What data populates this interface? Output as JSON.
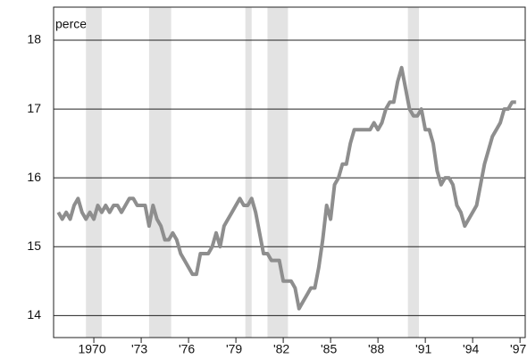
{
  "chart_data": {
    "type": "line",
    "y_unit_label": "percent",
    "xlim": [
      1967.45,
      1997.33
    ],
    "ylim": [
      13.68,
      18.48
    ],
    "yticks": [
      14,
      15,
      16,
      17,
      18
    ],
    "xticks": [
      {
        "value": 1970,
        "label": "1970"
      },
      {
        "value": 1973,
        "label": "'73"
      },
      {
        "value": 1976,
        "label": "'76"
      },
      {
        "value": 1979,
        "label": "'79"
      },
      {
        "value": 1982,
        "label": "'82"
      },
      {
        "value": 1985,
        "label": "'85"
      },
      {
        "value": 1988,
        "label": "'88"
      },
      {
        "value": 1991,
        "label": "'91"
      },
      {
        "value": 1994,
        "label": "'94"
      },
      {
        "value": 1997,
        "label": "'97"
      }
    ],
    "grid": true,
    "shaded_periods": [
      [
        1969.5,
        1970.5
      ],
      [
        1973.5,
        1974.9
      ],
      [
        1979.6,
        1980.0
      ],
      [
        1981.0,
        1982.3
      ],
      [
        1989.9,
        1990.6
      ]
    ],
    "shade_color": "#e3e3e3",
    "x": [
      1967.75,
      1968.0,
      1968.25,
      1968.5,
      1968.75,
      1969.0,
      1969.25,
      1969.5,
      1969.75,
      1970.0,
      1970.25,
      1970.5,
      1970.75,
      1971.0,
      1971.25,
      1971.5,
      1971.75,
      1972.0,
      1972.25,
      1972.5,
      1972.75,
      1973.0,
      1973.25,
      1973.5,
      1973.75,
      1974.0,
      1974.25,
      1974.5,
      1974.75,
      1975.0,
      1975.25,
      1975.5,
      1975.75,
      1976.0,
      1976.25,
      1976.5,
      1976.75,
      1977.0,
      1977.25,
      1977.5,
      1977.75,
      1978.0,
      1978.25,
      1978.5,
      1978.75,
      1979.0,
      1979.25,
      1979.5,
      1979.75,
      1980.0,
      1980.25,
      1980.5,
      1980.75,
      1981.0,
      1981.25,
      1981.5,
      1981.75,
      1982.0,
      1982.25,
      1982.5,
      1982.75,
      1983.0,
      1983.25,
      1983.5,
      1983.75,
      1984.0,
      1984.25,
      1984.5,
      1984.75,
      1985.0,
      1985.25,
      1985.5,
      1985.75,
      1986.0,
      1986.25,
      1986.5,
      1986.75,
      1987.0,
      1987.25,
      1987.5,
      1987.75,
      1988.0,
      1988.25,
      1988.5,
      1988.75,
      1989.0,
      1989.25,
      1989.5,
      1989.75,
      1990.0,
      1990.25,
      1990.5,
      1990.75,
      1991.0,
      1991.25,
      1991.5,
      1991.75,
      1992.0,
      1992.25,
      1992.5,
      1992.75,
      1993.0,
      1993.25,
      1993.5,
      1993.75,
      1994.0,
      1994.25,
      1994.5,
      1994.75,
      1995.0,
      1995.25,
      1995.5,
      1995.75,
      1996.0,
      1996.25,
      1996.5,
      1996.75
    ],
    "series": [
      {
        "color": "#8e8e8e",
        "values": [
          15.5,
          15.4,
          15.5,
          15.4,
          15.6,
          15.7,
          15.5,
          15.4,
          15.5,
          15.4,
          15.6,
          15.5,
          15.6,
          15.5,
          15.6,
          15.6,
          15.5,
          15.6,
          15.7,
          15.7,
          15.6,
          15.6,
          15.6,
          15.3,
          15.6,
          15.4,
          15.3,
          15.1,
          15.1,
          15.2,
          15.1,
          14.9,
          14.8,
          14.7,
          14.6,
          14.6,
          14.9,
          14.9,
          14.9,
          15.0,
          15.2,
          15.0,
          15.3,
          15.4,
          15.5,
          15.6,
          15.7,
          15.6,
          15.6,
          15.7,
          15.5,
          15.2,
          14.9,
          14.9,
          14.8,
          14.8,
          14.8,
          14.5,
          14.5,
          14.5,
          14.4,
          14.1,
          14.2,
          14.3,
          14.4,
          14.4,
          14.7,
          15.1,
          15.6,
          15.4,
          15.9,
          16.0,
          16.2,
          16.2,
          16.5,
          16.7,
          16.7,
          16.7,
          16.7,
          16.7,
          16.8,
          16.7,
          16.8,
          17.0,
          17.1,
          17.1,
          17.4,
          17.6,
          17.3,
          17.0,
          16.9,
          16.9,
          17.0,
          16.7,
          16.7,
          16.5,
          16.1,
          15.9,
          16.0,
          16.0,
          15.9,
          15.6,
          15.5,
          15.3,
          15.4,
          15.5,
          15.6,
          15.9,
          16.2,
          16.4,
          16.6,
          16.7,
          16.8,
          17.0,
          17.0,
          17.1,
          17.1
        ]
      }
    ]
  }
}
